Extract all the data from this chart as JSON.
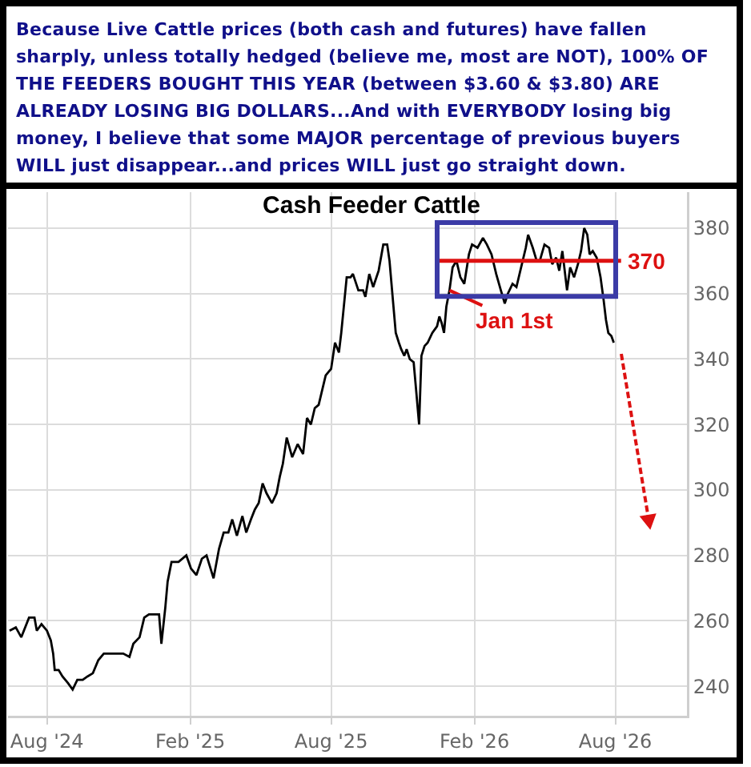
{
  "chart_data": {
    "type": "line",
    "title": "Cash Feeder Cattle",
    "annotations": [
      "Because Live Cattle prices (both cash and futures) have fallen sharply, unless totally hedged (believe me, most are NOT), 100% OF THE FEEDERS BOUGHT THIS YEAR (between $3.60 & $3.80) ARE ALREADY LOSING BIG DOLLARS...And with EVERYBODY losing big money, I believe that some MAJOR percentage of previous buyers WILL just disappear...and prices WILL just go straight down.",
      {
        "text": "Jan 1st",
        "x": "2025-12-31",
        "y": 361
      }
    ],
    "x": [
      "2024-06-14",
      "2024-06-22",
      "2024-06-29",
      "2024-07-09",
      "2024-07-16",
      "2024-07-19",
      "2024-07-25",
      "2024-08-01",
      "2024-08-06",
      "2024-08-09",
      "2024-08-11",
      "2024-08-16",
      "2024-08-21",
      "2024-08-28",
      "2024-09-03",
      "2024-09-09",
      "2024-09-16",
      "2024-09-22",
      "2024-09-29",
      "2024-10-06",
      "2024-10-13",
      "2024-10-20",
      "2024-10-27",
      "2024-11-03",
      "2024-11-07",
      "2024-11-15",
      "2024-11-20",
      "2024-11-28",
      "2024-12-04",
      "2024-12-10",
      "2024-12-23",
      "2024-12-26",
      "2024-12-31",
      "2025-01-03",
      "2025-01-08",
      "2025-01-17",
      "2025-01-27",
      "2025-02-02",
      "2025-02-09",
      "2025-02-16",
      "2025-02-22",
      "2025-03-03",
      "2025-03-10",
      "2025-03-16",
      "2025-03-22",
      "2025-03-27",
      "2025-04-02",
      "2025-04-09",
      "2025-04-14",
      "2025-04-20",
      "2025-04-25",
      "2025-04-30",
      "2025-05-05",
      "2025-05-10",
      "2025-05-17",
      "2025-05-23",
      "2025-05-27",
      "2025-05-31",
      "2025-06-05",
      "2025-06-12",
      "2025-06-19",
      "2025-06-26",
      "2025-07-01",
      "2025-07-06",
      "2025-07-11",
      "2025-07-16",
      "2025-07-25",
      "2025-08-01",
      "2025-08-06",
      "2025-08-11",
      "2025-08-14",
      "2025-08-21",
      "2025-08-26",
      "2025-08-29",
      "2025-09-05",
      "2025-09-11",
      "2025-09-14",
      "2025-09-19",
      "2025-09-24",
      "2025-10-01",
      "2025-10-07",
      "2025-10-12",
      "2025-10-15",
      "2025-10-19",
      "2025-10-23",
      "2025-10-27",
      "2025-10-30",
      "2025-11-03",
      "2025-11-06",
      "2025-11-10",
      "2025-11-15",
      "2025-11-18",
      "2025-11-22",
      "2025-11-25",
      "2025-11-29",
      "2025-12-03",
      "2025-12-09",
      "2025-12-15",
      "2025-12-18",
      "2025-12-21",
      "2025-12-24",
      "2025-12-27",
      "2025-12-31",
      "2026-01-04",
      "2026-01-09",
      "2026-01-14",
      "2026-01-19",
      "2026-01-25",
      "2026-01-29",
      "2026-02-05",
      "2026-02-12",
      "2026-02-17",
      "2026-02-23",
      "2026-03-01",
      "2026-03-07",
      "2026-03-12",
      "2026-03-16",
      "2026-03-22",
      "2026-03-27",
      "2026-04-03",
      "2026-04-08",
      "2026-04-11",
      "2026-04-17",
      "2026-04-22",
      "2026-04-26",
      "2026-05-02",
      "2026-05-08",
      "2026-05-12",
      "2026-05-17",
      "2026-05-21",
      "2026-05-25",
      "2026-05-31",
      "2026-06-04",
      "2026-06-09",
      "2026-06-14",
      "2026-06-18",
      "2026-06-22",
      "2026-06-26",
      "2026-06-29",
      "2026-07-03",
      "2026-07-08",
      "2026-07-13",
      "2026-07-17",
      "2026-07-20",
      "2026-07-23",
      "2026-07-27",
      "2026-07-30"
    ],
    "values": [
      257,
      258,
      255,
      261,
      261,
      257,
      259,
      257,
      254,
      250,
      245,
      245,
      243,
      241,
      239,
      242,
      242,
      243,
      244,
      248,
      250,
      250,
      250,
      250,
      250,
      249,
      253,
      255,
      261,
      262,
      262,
      253,
      264,
      272,
      278,
      278,
      280,
      276,
      274,
      279,
      280,
      273,
      282,
      287,
      287,
      291,
      286,
      292,
      287,
      291,
      294,
      296,
      302,
      299,
      296,
      299,
      304,
      308,
      316,
      310,
      314,
      311,
      322,
      320,
      325,
      326,
      335,
      337,
      345,
      342,
      348,
      365,
      365,
      366,
      361,
      361,
      359,
      366,
      362,
      367,
      375,
      375,
      370,
      359,
      348,
      345,
      343,
      341,
      343,
      340,
      339,
      331,
      320,
      341,
      344,
      345,
      348,
      350,
      353,
      351,
      348,
      356,
      361,
      368,
      370,
      365,
      363,
      372,
      375,
      374,
      377,
      375,
      372,
      366,
      361,
      357,
      360,
      363,
      362,
      369,
      374,
      378,
      374,
      370,
      370,
      375,
      374,
      369,
      371,
      367,
      373,
      361,
      368,
      365,
      369,
      373,
      380,
      378,
      372,
      373,
      371,
      365,
      358,
      352,
      348,
      347,
      345
    ],
    "color": "#000000",
    "xlim": [
      "2024-06-12",
      "2026-11-01"
    ],
    "xticks": [
      {
        "value": "2024-08-01",
        "label": "Aug '24"
      },
      {
        "value": "2025-02-01",
        "label": "Feb '25"
      },
      {
        "value": "2025-08-01",
        "label": "Aug '25"
      },
      {
        "value": "2026-02-01",
        "label": "Feb '26"
      },
      {
        "value": "2026-08-01",
        "label": "Aug '26"
      }
    ],
    "ylim": [
      231,
      391
    ],
    "yticks": [
      240,
      260,
      280,
      300,
      320,
      340,
      360,
      380
    ],
    "grid": true,
    "ref_lines": [
      {
        "axis": "y",
        "value": 370,
        "label": "370",
        "color": "#dd1111"
      }
    ]
  }
}
